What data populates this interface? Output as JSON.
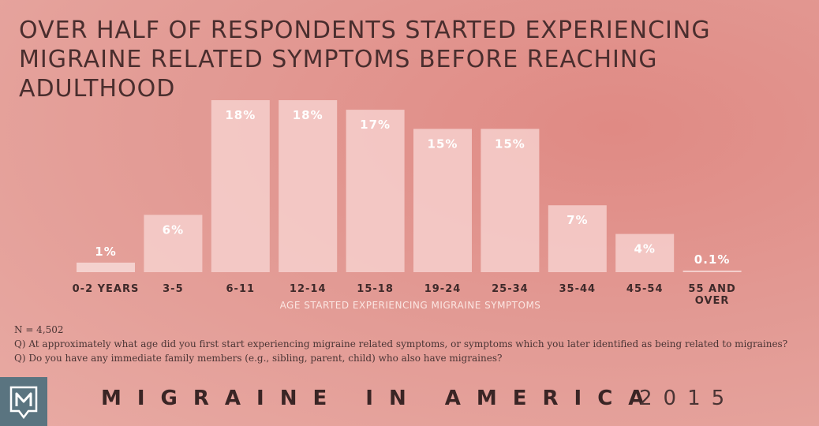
{
  "title_line1": "OVER HALF OF RESPONDENTS STARTED EXPERIENCING",
  "title_line2": "MIGRAINE RELATED SYMPTOMS BEFORE REACHING ADULTHOOD",
  "chart_data": {
    "type": "bar",
    "title": "OVER HALF OF RESPONDENTS STARTED EXPERIENCING MIGRAINE RELATED SYMPTOMS BEFORE REACHING ADULTHOOD",
    "xlabel": "AGE STARTED EXPERIENCING MIGRAINE SYMPTOMS",
    "ylabel": "",
    "categories": [
      "0-2 YEARS",
      "3-5",
      "6-11",
      "12-14",
      "15-18",
      "19-24",
      "25-34",
      "35-44",
      "45-54",
      "55 AND OVER"
    ],
    "values": [
      1,
      6,
      18,
      18,
      17,
      15,
      15,
      7,
      4,
      0.1
    ],
    "value_labels": [
      "1%",
      "6%",
      "18%",
      "18%",
      "17%",
      "15%",
      "15%",
      "7%",
      "4%",
      "0.1%"
    ],
    "ylim": [
      0,
      18
    ],
    "grid": false,
    "legend": "none"
  },
  "notes": [
    "N = 4,502",
    "Q) At approximately what age did you first start experiencing migraine related symptoms, or symptoms which you later identified as being related to migraines?",
    "Q) Do you have any immediate family members (e.g., sibling, parent, child) who also have migraines?"
  ],
  "footer": {
    "brand": "MIGRAINE IN AMERICA",
    "year": "2015",
    "logo_letter": "M"
  },
  "colors": {
    "bar": "#f7d2cf",
    "bar_small": "#f8dcd9",
    "value_text": "#ffffff",
    "category_text": "#3f2a2a",
    "logo_bg": "#5a7480"
  }
}
